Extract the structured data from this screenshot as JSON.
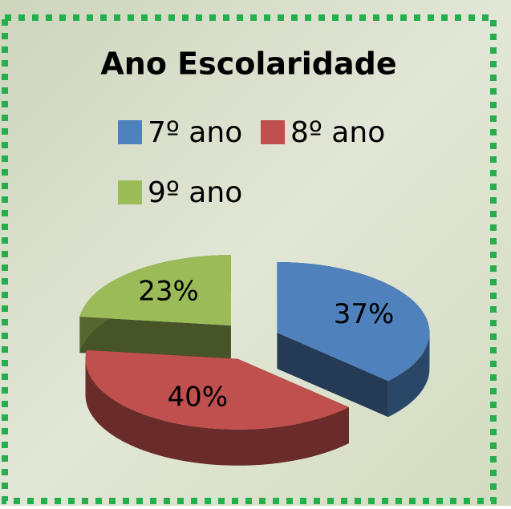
{
  "chart_data": {
    "type": "pie3d",
    "title": "Ano Escolaridade",
    "categories": [
      "7º ano",
      "8º ano",
      "9º ano"
    ],
    "values": [
      37,
      40,
      23
    ],
    "value_labels": [
      "37%",
      "40%",
      "23%"
    ],
    "colors": [
      "#4f81bd",
      "#c0504d",
      "#9bbb59"
    ],
    "legend": "top"
  }
}
